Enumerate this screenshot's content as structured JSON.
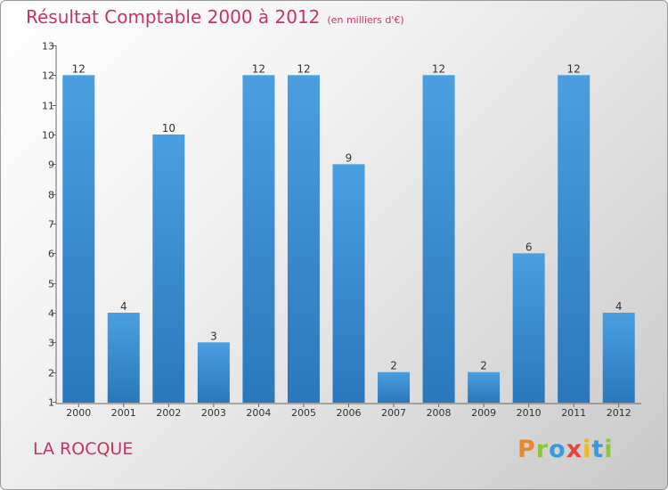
{
  "chart_data": {
    "type": "bar",
    "title": "Résultat Comptable 2000 à 2012",
    "subtitle": "(en milliers d'€)",
    "categories": [
      "2000",
      "2001",
      "2002",
      "2003",
      "2004",
      "2005",
      "2006",
      "2007",
      "2008",
      "2009",
      "2010",
      "2011",
      "2012"
    ],
    "values": [
      12,
      4,
      10,
      3,
      12,
      12,
      9,
      2,
      12,
      2,
      6,
      12,
      4
    ],
    "data_labels": [
      "12",
      "4",
      "10",
      "3",
      "12",
      "12",
      "9",
      "2",
      "12",
      "2",
      "6",
      "12",
      "4"
    ],
    "ylim": [
      1,
      13
    ],
    "yticks": [
      "1",
      "2",
      "3",
      "4",
      "5",
      "6",
      "7",
      "8",
      "9",
      "10",
      "11",
      "12",
      "13"
    ],
    "xlabel": "",
    "ylabel": "",
    "grid": false,
    "bar_color": "#4a9fe0"
  },
  "footer": {
    "location": "LA ROCQUE",
    "brand": "Proxiti",
    "brand_colors": [
      "#e8872e",
      "#8cc63f",
      "#3a9ad9",
      "#e8443a",
      "#f2b81c",
      "#3a9ad9",
      "#8cc63f"
    ]
  },
  "colors": {
    "accent": "#c8335f"
  }
}
